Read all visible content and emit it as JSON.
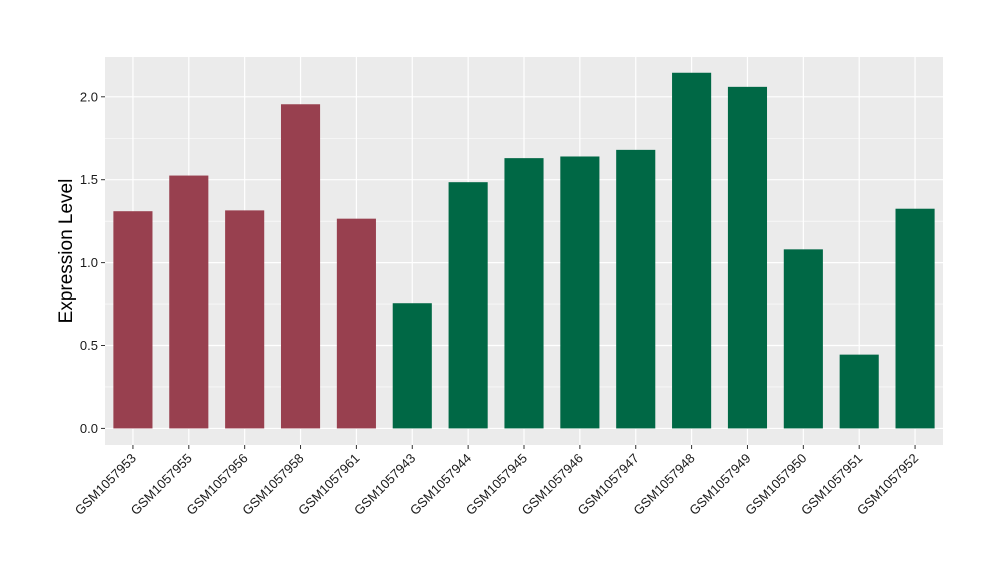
{
  "chart_data": {
    "type": "bar",
    "title": "",
    "xlabel": "",
    "ylabel": "Expression Level",
    "ylim": [
      -0.1,
      2.24
    ],
    "yticks": [
      0.0,
      0.5,
      1.0,
      1.5,
      2.0
    ],
    "ytick_labels": [
      "0.0",
      "0.5",
      "1.0",
      "1.5",
      "2.0"
    ],
    "grid": true,
    "legend": "none",
    "categories": [
      "GSM1057953",
      "GSM1057955",
      "GSM1057956",
      "GSM1057958",
      "GSM1057961",
      "GSM1057943",
      "GSM1057944",
      "GSM1057945",
      "GSM1057946",
      "GSM1057947",
      "GSM1057948",
      "GSM1057949",
      "GSM1057950",
      "GSM1057951",
      "GSM1057952"
    ],
    "values": [
      1.31,
      1.525,
      1.315,
      1.955,
      1.265,
      0.755,
      1.485,
      1.63,
      1.64,
      1.68,
      2.145,
      2.06,
      1.08,
      0.445,
      1.325
    ],
    "groups": [
      "group1",
      "group1",
      "group1",
      "group1",
      "group1",
      "group2",
      "group2",
      "group2",
      "group2",
      "group2",
      "group2",
      "group2",
      "group2",
      "group2",
      "group2"
    ],
    "colors": {
      "group1": "#98404f",
      "group2": "#006845",
      "panel": "#ebebeb",
      "grid": "#ffffff"
    }
  }
}
